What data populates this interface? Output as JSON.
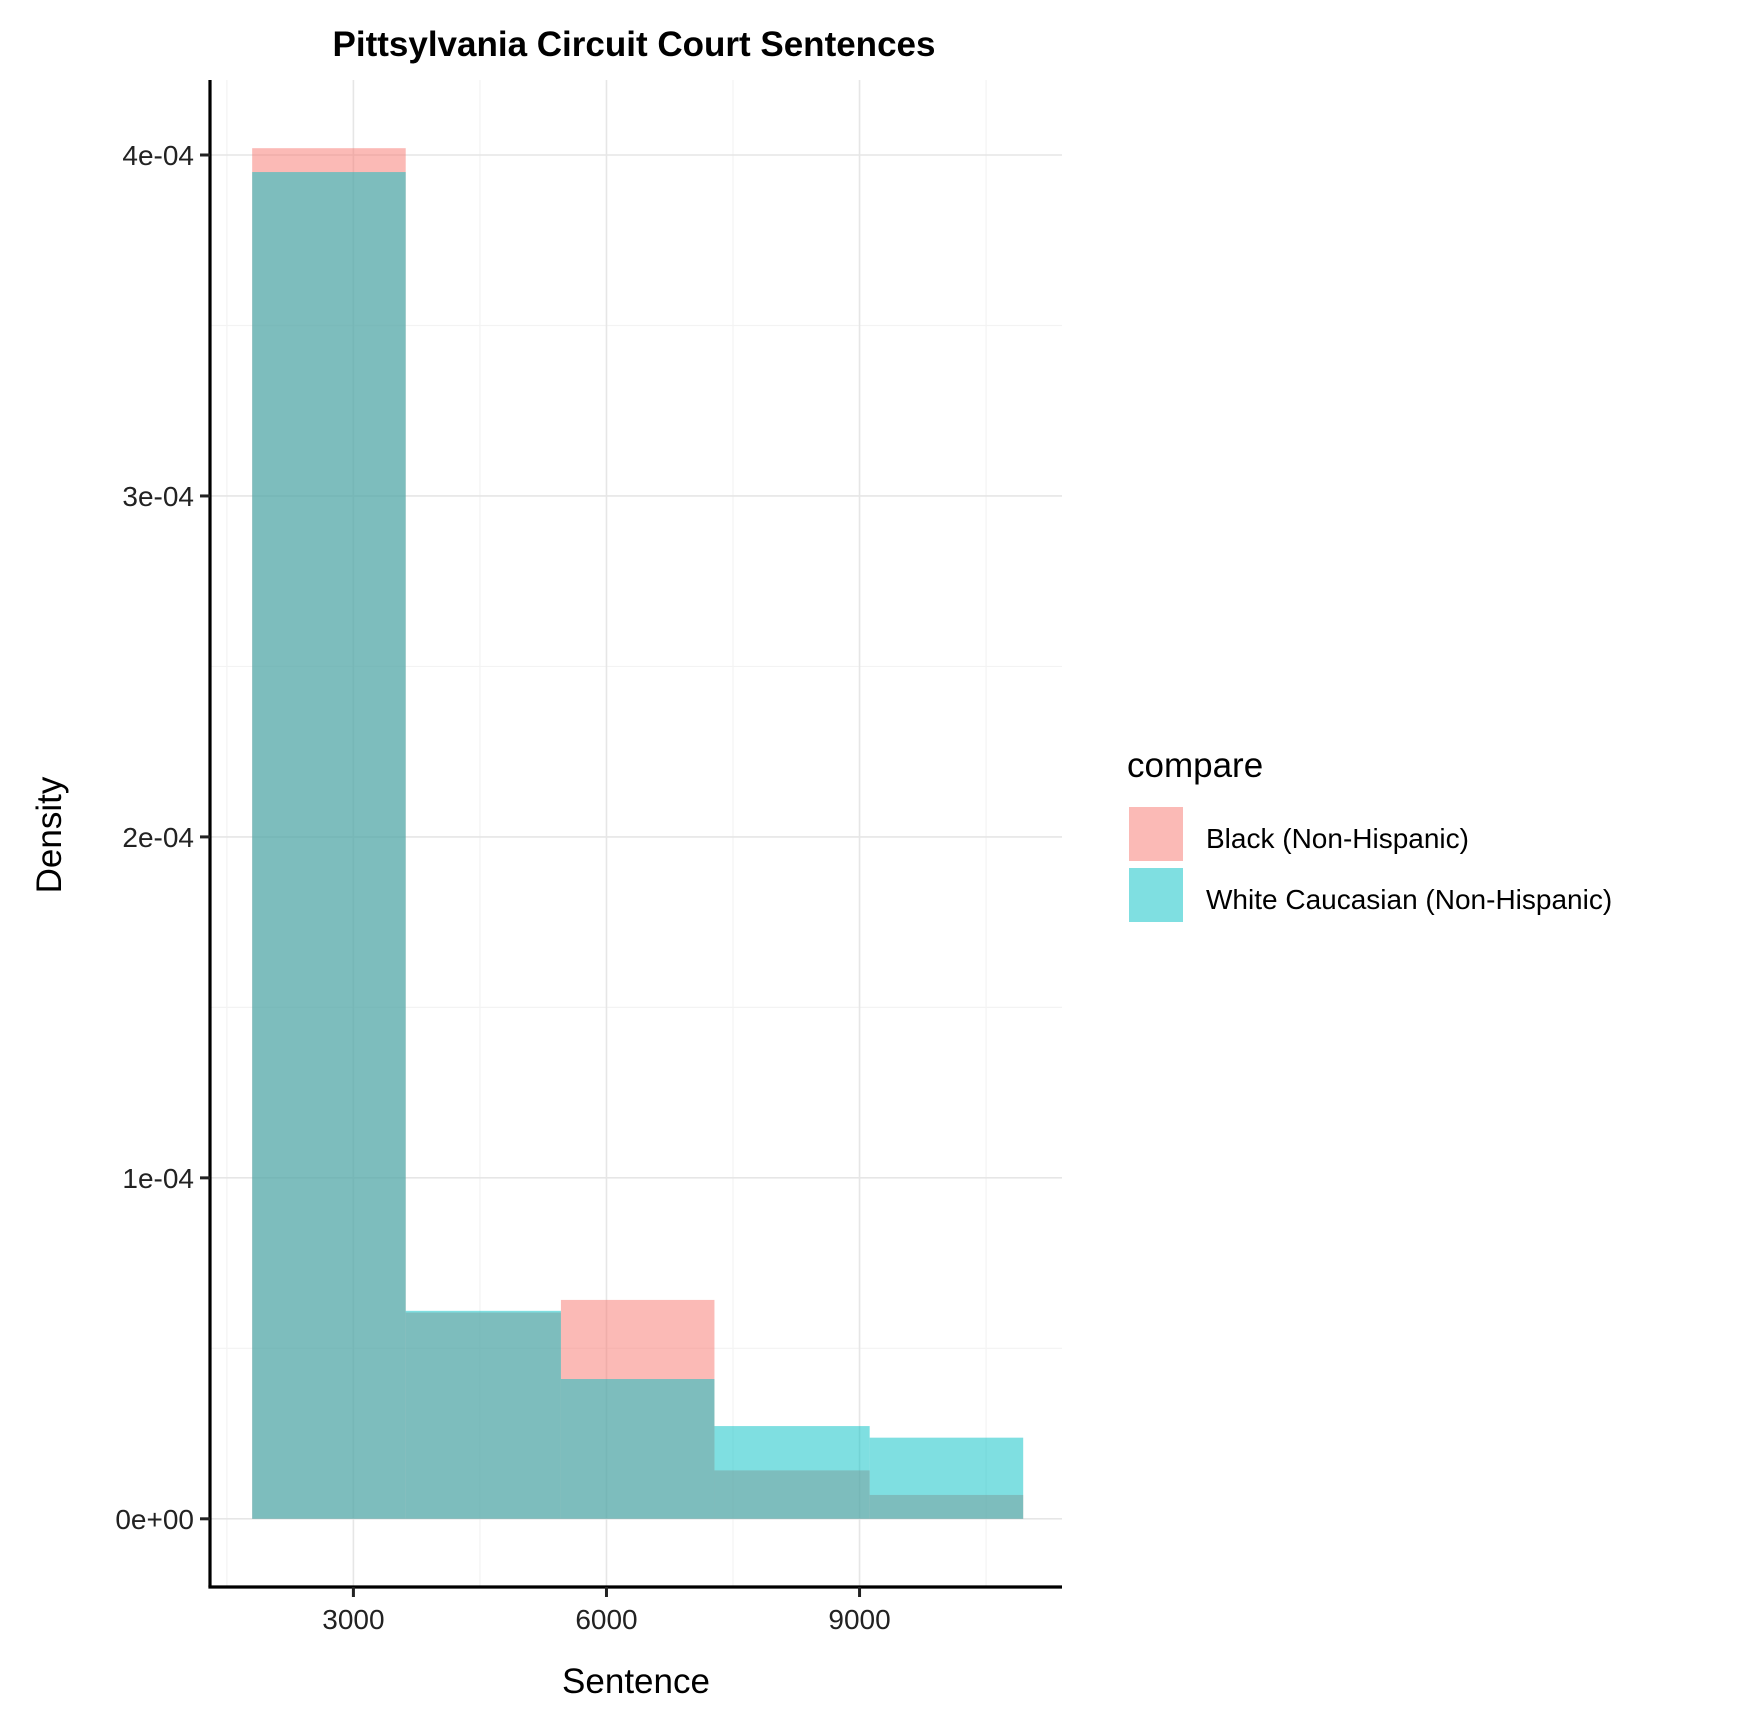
{
  "chart_data": {
    "type": "bar",
    "subtype": "overlaid-histogram",
    "title": "Pittsylvania Circuit Court Sentences",
    "xlabel": "Sentence",
    "ylabel": "Density",
    "xlim": [
      1300,
      11400
    ],
    "ylim": [
      -2e-05,
      0.000422
    ],
    "x_ticks": [
      3000,
      6000,
      9000
    ],
    "x_tick_labels": [
      "3000",
      "6000",
      "9000"
    ],
    "y_ticks": [
      0,
      0.0001,
      0.0002,
      0.0003,
      0.0004
    ],
    "y_tick_labels": [
      "0e+00",
      "1e-04",
      "2e-04",
      "3e-04",
      "4e-04"
    ],
    "bins": [
      [
        1800,
        3620
      ],
      [
        3620,
        5460
      ],
      [
        5460,
        7280
      ],
      [
        7280,
        9120
      ],
      [
        9120,
        10940
      ]
    ],
    "series": [
      {
        "name": "Black (Non-Hispanic)",
        "color": "#F8766D",
        "values": [
          0.000402,
          6.05e-05,
          6.42e-05,
          1.42e-05,
          7e-06
        ]
      },
      {
        "name": "White Caucasian (Non-Hispanic)",
        "color": "#00BFC4",
        "values": [
          0.000395,
          6.1e-05,
          4.1e-05,
          2.72e-05,
          2.38e-05
        ]
      }
    ],
    "fill_opacity": 0.5,
    "grid": true,
    "legend": {
      "title": "compare",
      "position": "right"
    }
  }
}
